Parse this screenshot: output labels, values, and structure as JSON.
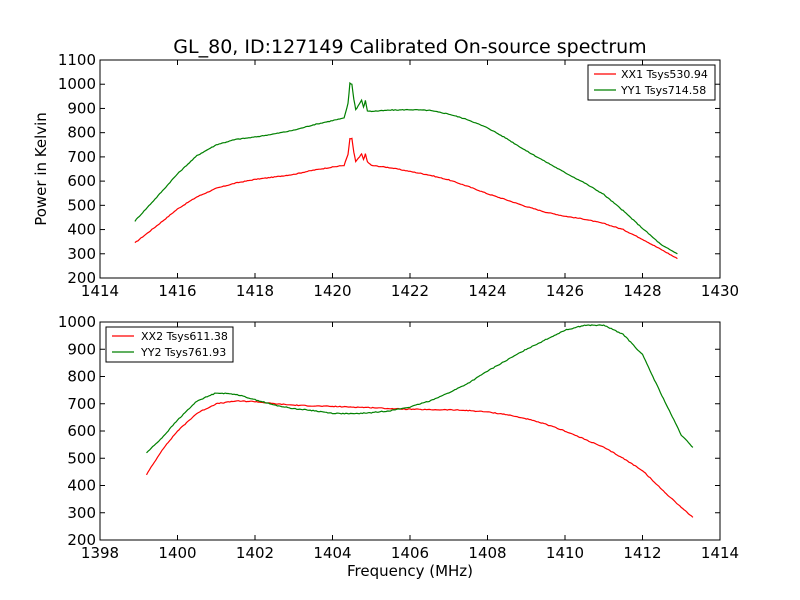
{
  "title": "GL_80, ID:127149 Calibrated On-source spectrum",
  "chart_data": [
    {
      "type": "line",
      "ylabel": "Power in Kelvin",
      "xlabel": "",
      "xlim": [
        1414,
        1430
      ],
      "ylim": [
        200,
        1100
      ],
      "xticks": [
        1414,
        1416,
        1418,
        1420,
        1422,
        1424,
        1426,
        1428,
        1430
      ],
      "yticks": [
        200,
        300,
        400,
        500,
        600,
        700,
        800,
        900,
        1000,
        1100
      ],
      "legend": "top-right",
      "series": [
        {
          "name": "XX1 Tsys530.94",
          "color": "#ff0000",
          "points": [
            [
              1414.9,
              345
            ],
            [
              1415.5,
              420
            ],
            [
              1416,
              485
            ],
            [
              1416.5,
              535
            ],
            [
              1417,
              570
            ],
            [
              1417.5,
              592
            ],
            [
              1418,
              607
            ],
            [
              1418.5,
              617
            ],
            [
              1419,
              628
            ],
            [
              1419.5,
              645
            ],
            [
              1420,
              658
            ],
            [
              1420.3,
              665
            ],
            [
              1420.4,
              710
            ],
            [
              1420.45,
              775
            ],
            [
              1420.5,
              775
            ],
            [
              1420.55,
              720
            ],
            [
              1420.6,
              680
            ],
            [
              1420.7,
              700
            ],
            [
              1420.75,
              712
            ],
            [
              1420.8,
              690
            ],
            [
              1420.85,
              712
            ],
            [
              1420.9,
              680
            ],
            [
              1421,
              665
            ],
            [
              1421.5,
              655
            ],
            [
              1422,
              640
            ],
            [
              1422.5,
              625
            ],
            [
              1423,
              605
            ],
            [
              1423.5,
              578
            ],
            [
              1424,
              548
            ],
            [
              1424.5,
              522
            ],
            [
              1425,
              495
            ],
            [
              1425.5,
              472
            ],
            [
              1426,
              455
            ],
            [
              1426.5,
              443
            ],
            [
              1427,
              425
            ],
            [
              1427.5,
              400
            ],
            [
              1428,
              360
            ],
            [
              1428.5,
              316
            ],
            [
              1428.9,
              280
            ]
          ]
        },
        {
          "name": "YY1 Tsys714.58",
          "color": "#008000",
          "points": [
            [
              1414.9,
              435
            ],
            [
              1415.5,
              540
            ],
            [
              1416,
              630
            ],
            [
              1416.5,
              705
            ],
            [
              1417,
              750
            ],
            [
              1417.5,
              772
            ],
            [
              1418,
              782
            ],
            [
              1418.5,
              795
            ],
            [
              1419,
              810
            ],
            [
              1419.5,
              832
            ],
            [
              1420,
              850
            ],
            [
              1420.3,
              860
            ],
            [
              1420.4,
              920
            ],
            [
              1420.45,
              1005
            ],
            [
              1420.5,
              1000
            ],
            [
              1420.55,
              940
            ],
            [
              1420.6,
              895
            ],
            [
              1420.7,
              920
            ],
            [
              1420.75,
              935
            ],
            [
              1420.8,
              905
            ],
            [
              1420.85,
              932
            ],
            [
              1420.9,
              890
            ],
            [
              1421,
              888
            ],
            [
              1421.5,
              893
            ],
            [
              1422,
              895
            ],
            [
              1422.5,
              892
            ],
            [
              1423,
              877
            ],
            [
              1423.5,
              853
            ],
            [
              1424,
              820
            ],
            [
              1424.5,
              775
            ],
            [
              1425,
              725
            ],
            [
              1425.5,
              680
            ],
            [
              1426,
              635
            ],
            [
              1426.5,
              593
            ],
            [
              1427,
              545
            ],
            [
              1427.5,
              478
            ],
            [
              1428,
              405
            ],
            [
              1428.5,
              335
            ],
            [
              1428.9,
              300
            ]
          ]
        }
      ]
    },
    {
      "type": "line",
      "ylabel": "",
      "xlabel": "Frequency (MHz)",
      "xlim": [
        1398,
        1414
      ],
      "ylim": [
        200,
        1000
      ],
      "xticks": [
        1398,
        1400,
        1402,
        1404,
        1406,
        1408,
        1410,
        1412,
        1414
      ],
      "yticks": [
        200,
        300,
        400,
        500,
        600,
        700,
        800,
        900,
        1000
      ],
      "legend": "top-left",
      "series": [
        {
          "name": "XX2 Tsys611.38",
          "color": "#ff0000",
          "points": [
            [
              1399.2,
              440
            ],
            [
              1399.6,
              530
            ],
            [
              1400,
              600
            ],
            [
              1400.5,
              665
            ],
            [
              1401,
              700
            ],
            [
              1401.5,
              710
            ],
            [
              1402,
              708
            ],
            [
              1402.5,
              700
            ],
            [
              1403,
              695
            ],
            [
              1403.5,
              692
            ],
            [
              1404,
              690
            ],
            [
              1404.5,
              688
            ],
            [
              1405,
              686
            ],
            [
              1405.5,
              682
            ],
            [
              1406,
              680
            ],
            [
              1406.5,
              678
            ],
            [
              1407,
              678
            ],
            [
              1407.5,
              675
            ],
            [
              1408,
              670
            ],
            [
              1408.5,
              660
            ],
            [
              1409,
              645
            ],
            [
              1409.5,
              625
            ],
            [
              1410,
              600
            ],
            [
              1410.5,
              570
            ],
            [
              1411,
              540
            ],
            [
              1411.5,
              500
            ],
            [
              1412,
              455
            ],
            [
              1412.5,
              385
            ],
            [
              1413,
              320
            ],
            [
              1413.3,
              283
            ]
          ]
        },
        {
          "name": "YY2 Tsys761.93",
          "color": "#008000",
          "points": [
            [
              1399.2,
              520
            ],
            [
              1399.6,
              575
            ],
            [
              1400,
              640
            ],
            [
              1400.5,
              710
            ],
            [
              1401,
              740
            ],
            [
              1401.5,
              735
            ],
            [
              1402,
              715
            ],
            [
              1402.5,
              695
            ],
            [
              1403,
              682
            ],
            [
              1403.5,
              675
            ],
            [
              1404,
              665
            ],
            [
              1404.5,
              663
            ],
            [
              1405,
              667
            ],
            [
              1405.5,
              675
            ],
            [
              1406,
              688
            ],
            [
              1406.5,
              710
            ],
            [
              1407,
              740
            ],
            [
              1407.5,
              775
            ],
            [
              1408,
              820
            ],
            [
              1408.5,
              860
            ],
            [
              1409,
              900
            ],
            [
              1409.5,
              935
            ],
            [
              1410,
              970
            ],
            [
              1410.5,
              988
            ],
            [
              1411,
              988
            ],
            [
              1411.5,
              955
            ],
            [
              1412,
              880
            ],
            [
              1412.5,
              730
            ],
            [
              1413,
              585
            ],
            [
              1413.3,
              540
            ]
          ]
        }
      ]
    }
  ]
}
